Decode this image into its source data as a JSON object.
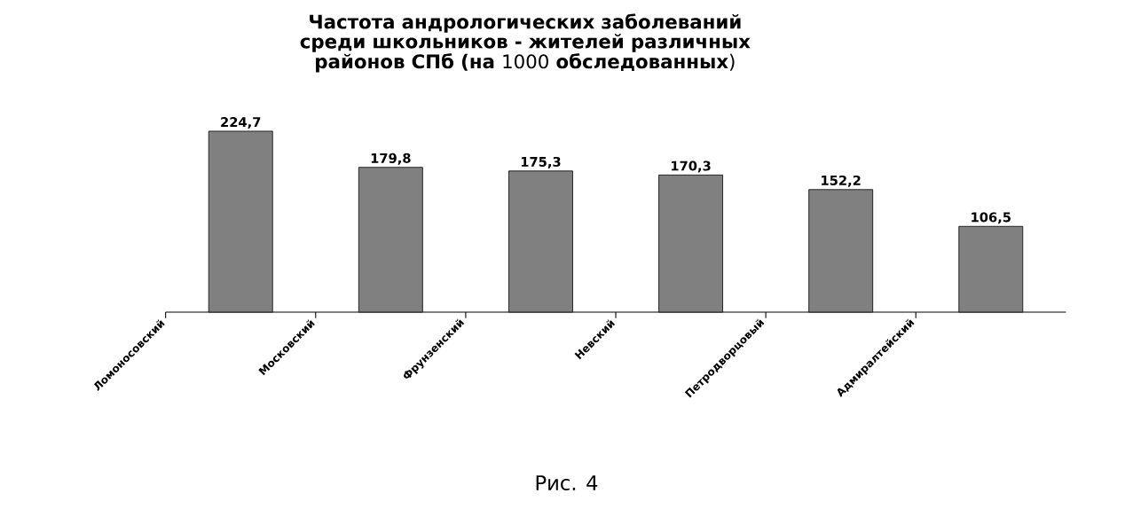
{
  "chart_data": {
    "type": "bar",
    "title": "**Частота андрологических заболеваний среди школьников - жителей различных районов СПб (на** 1000 **обследованных**)",
    "categories": [
      "Ломоносовский",
      "Московский",
      "Фрунзенский",
      "Невский",
      "Петродворцовый",
      "Адмиралтейский"
    ],
    "values": [
      224.7,
      179.8,
      175.3,
      170.3,
      152.2,
      106.5
    ],
    "value_labels": [
      "224,7",
      "179,8",
      "175,3",
      "170,3",
      "152,2",
      "106,5"
    ],
    "color": "#808080",
    "annotations": [
      "Рис. 4"
    ]
  }
}
